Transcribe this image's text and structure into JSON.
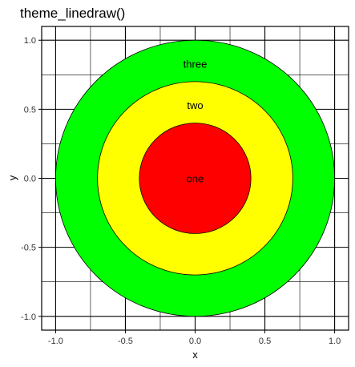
{
  "chart_data": {
    "type": "area",
    "title": "theme_linedraw()",
    "xlabel": "x",
    "ylabel": "y",
    "xlim": [
      -1.1,
      1.1
    ],
    "ylim": [
      -1.1,
      1.1
    ],
    "x_ticks": [
      -1.0,
      -0.5,
      0.0,
      0.5,
      1.0
    ],
    "y_ticks": [
      -1.0,
      -0.5,
      0.0,
      0.5,
      1.0
    ],
    "x_tick_labels": [
      "-1.0",
      "-0.5",
      "0.0",
      "0.5",
      "1.0"
    ],
    "y_tick_labels": [
      "-1.0",
      "-0.5",
      "0.0",
      "0.5",
      "1.0"
    ],
    "grid": true,
    "circles": [
      {
        "label": "three",
        "radius": 1.0,
        "fill": "#00ff00",
        "label_x": 0.0,
        "label_y": 0.83
      },
      {
        "label": "two",
        "radius": 0.7,
        "fill": "#ffff00",
        "label_x": 0.0,
        "label_y": 0.53
      },
      {
        "label": "one",
        "radius": 0.4,
        "fill": "#ff0000",
        "label_x": 0.0,
        "label_y": 0.0
      }
    ]
  }
}
